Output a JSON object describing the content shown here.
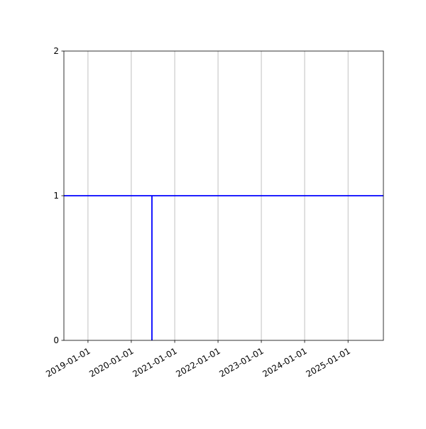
{
  "chart_data": {
    "type": "line",
    "title": "",
    "xlabel": "",
    "ylabel": "",
    "x_axis_type": "date",
    "xlim": [
      "2018-06-12",
      "2025-10-26"
    ],
    "ylim": [
      0,
      2
    ],
    "x_ticks": [
      "2019-01-01",
      "2020-01-01",
      "2021-01-01",
      "2022-01-01",
      "2023-01-01",
      "2024-01-01",
      "2025-01-01"
    ],
    "y_ticks": [
      0,
      1,
      2
    ],
    "grid": "x-axis vertical gridlines",
    "series": [
      {
        "color": "#0000ff",
        "segments": [
          {
            "x": [
              "2018-06-12",
              "2025-10-26"
            ],
            "y": [
              1,
              1
            ]
          },
          {
            "x": [
              "2020-06-23",
              "2020-06-23"
            ],
            "y": [
              0,
              1
            ]
          }
        ]
      }
    ],
    "colors": {
      "line": "#0000ff",
      "grid": "#b0b0b0"
    }
  }
}
